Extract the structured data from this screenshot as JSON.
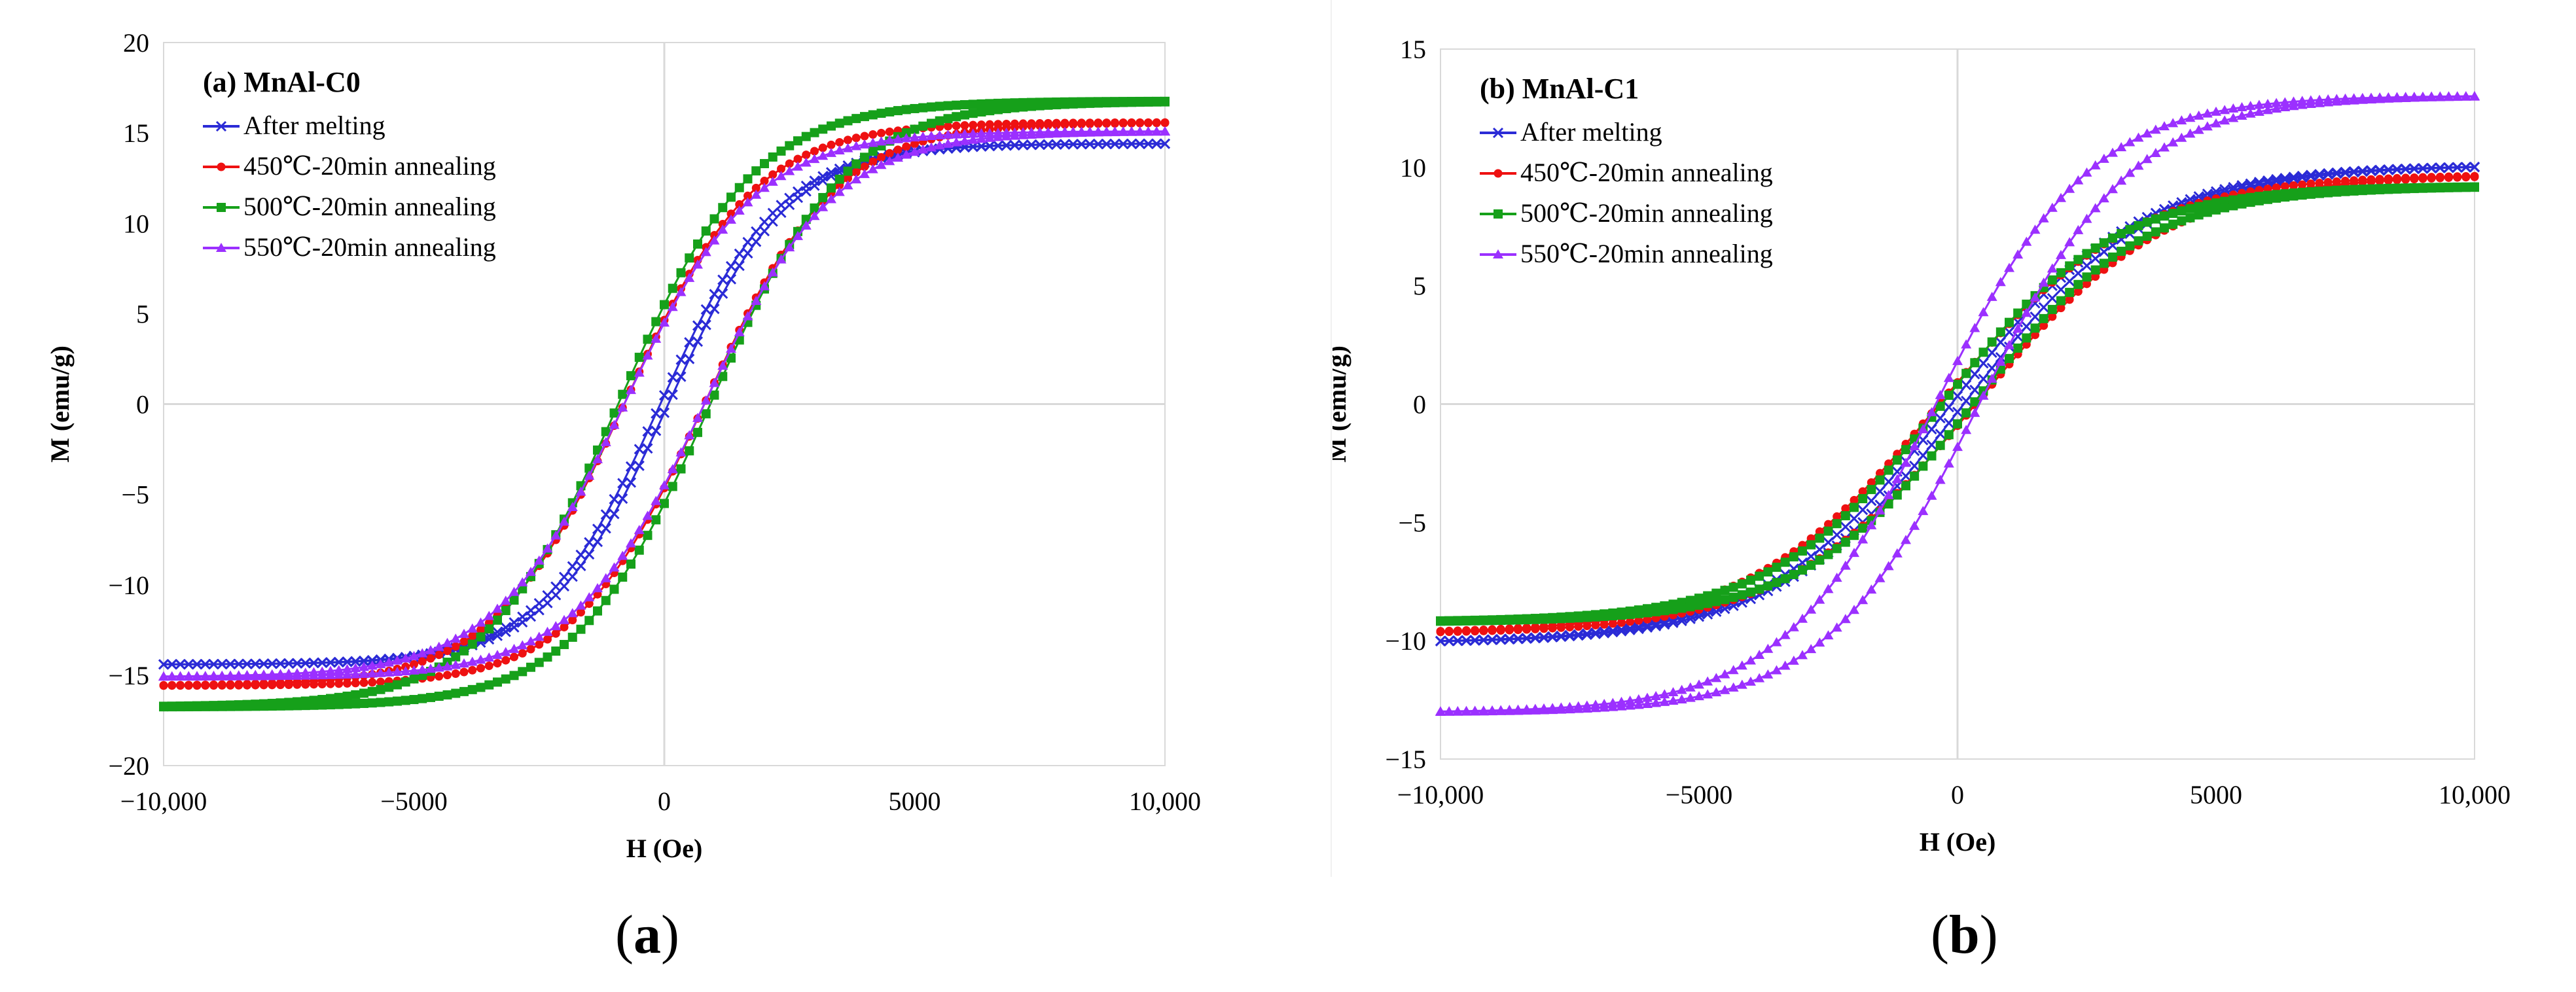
{
  "panels": [
    {
      "caption_open": "(",
      "caption_letter": "a",
      "caption_close": ")"
    },
    {
      "caption_open": "(",
      "caption_letter": "b",
      "caption_close": ")"
    }
  ],
  "chart_data": [
    {
      "type": "line",
      "subtype": "hysteresis",
      "title": "(a) MnAl-C0",
      "xlabel": "H (Oe)",
      "ylabel": "M (emu/g)",
      "xlim": [
        -10000,
        10000
      ],
      "ylim": [
        -20,
        20
      ],
      "xticks": [
        -10000,
        -5000,
        0,
        5000,
        10000
      ],
      "xtick_labels": [
        "−10,000",
        "−5000",
        "0",
        "5000",
        "10,000"
      ],
      "yticks": [
        -20,
        -15,
        -10,
        -5,
        0,
        5,
        10,
        15,
        20
      ],
      "ytick_labels": [
        "−20",
        "−15",
        "−10",
        "−5",
        "0",
        "5",
        "10",
        "15",
        "20"
      ],
      "legend_position": "top-left",
      "series": [
        {
          "name": "After melting",
          "color": "#2b2bd6",
          "marker": "x",
          "ms": 14.7,
          "hc": 80,
          "mr": 3.0,
          "a": 2400
        },
        {
          "name": "450℃-20min annealing",
          "color": "#ee1111",
          "marker": "circle",
          "ms": 15.9,
          "hc": 800,
          "mr": 4.6,
          "a": 2600
        },
        {
          "name": "500℃-20min annealing",
          "color": "#16a01a",
          "marker": "square",
          "ms": 17.1,
          "hc": 920,
          "mr": 5.0,
          "a": 2700
        },
        {
          "name": "550℃-20min annealing",
          "color": "#9b30ff",
          "marker": "triangle",
          "ms": 15.4,
          "hc": 800,
          "mr": 4.4,
          "a": 2600
        }
      ]
    },
    {
      "type": "line",
      "subtype": "hysteresis",
      "title": "(b) MnAl-C1",
      "xlabel": "H (Oe)",
      "ylabel": "M (emu/g)",
      "xlim": [
        -10000,
        10000
      ],
      "ylim": [
        -15,
        15
      ],
      "xticks": [
        -10000,
        -5000,
        0,
        5000,
        10000
      ],
      "xtick_labels": [
        "−10,000",
        "−5000",
        "0",
        "5000",
        "10,000"
      ],
      "yticks": [
        -15,
        -10,
        -5,
        0,
        5,
        10,
        15
      ],
      "ytick_labels": [
        "−15",
        "−10",
        "−5",
        "0",
        "5",
        "10",
        "15"
      ],
      "legend_position": "top-left",
      "series": [
        {
          "name": "After melting",
          "color": "#2b2bd6",
          "marker": "x",
          "ms": 10.3,
          "hc": 120,
          "mr": 2.0,
          "a": 3600
        },
        {
          "name": "450℃-20min annealing",
          "color": "#ee1111",
          "marker": "circle",
          "ms": 9.9,
          "hc": 350,
          "mr": 1.5,
          "a": 3700
        },
        {
          "name": "500℃-20min annealing",
          "color": "#16a01a",
          "marker": "square",
          "ms": 9.4,
          "hc": 300,
          "mr": 1.8,
          "a": 3300
        },
        {
          "name": "550℃-20min annealing",
          "color": "#9b30ff",
          "marker": "triangle",
          "ms": 13.3,
          "hc": 420,
          "mr": 3.3,
          "a": 3000
        }
      ]
    }
  ]
}
